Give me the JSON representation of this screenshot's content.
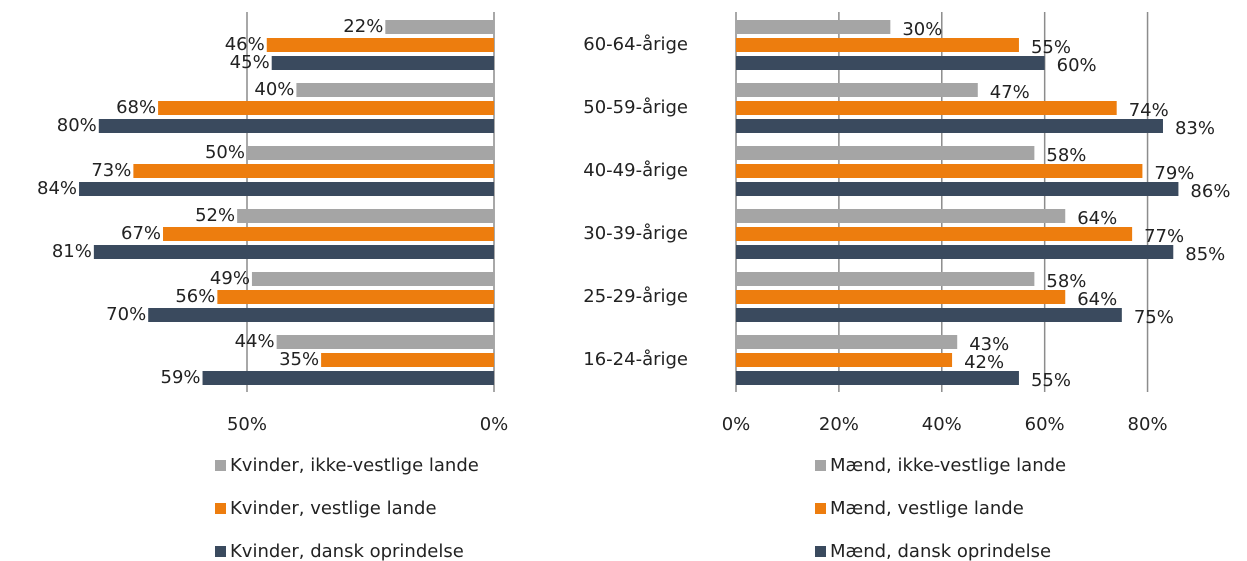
{
  "chart_data": [
    {
      "type": "bar",
      "orientation": "horizontal",
      "x_reversed": true,
      "categories": [
        null,
        null,
        null,
        null,
        null,
        null
      ],
      "xlim": [
        0,
        100
      ],
      "xticks": [
        {
          "value": 50,
          "label": "50%"
        },
        {
          "value": 0,
          "label": "0%"
        }
      ],
      "grid": true,
      "series": [
        {
          "name": "Kvinder, ikke-vestlige lande",
          "color": "#a5a5a5",
          "values": [
            22,
            40,
            50,
            52,
            49,
            44
          ],
          "value_labels": [
            "22%",
            "40%",
            "50%",
            "52%",
            "49%",
            "44%"
          ]
        },
        {
          "name": "Kvinder, vestlige lande",
          "color": "#ed7d0e",
          "values": [
            46,
            68,
            73,
            67,
            56,
            35
          ],
          "value_labels": [
            "46%",
            "68%",
            "73%",
            "67%",
            "56%",
            "35%"
          ]
        },
        {
          "name": "Kvinder, dansk oprindelse",
          "color": "#3a4a5e",
          "values": [
            45,
            80,
            84,
            81,
            70,
            59
          ],
          "value_labels": [
            "45%",
            "80%",
            "84%",
            "81%",
            "70%",
            "59%"
          ]
        }
      ]
    },
    {
      "type": "bar",
      "orientation": "horizontal",
      "x_reversed": false,
      "categories": [
        "60-64-årige",
        "50-59-årige",
        "40-49-årige",
        "30-39-årige",
        "25-29-årige",
        "16-24-årige"
      ],
      "xlim": [
        0,
        90
      ],
      "xticks": [
        {
          "value": 0,
          "label": "0%"
        },
        {
          "value": 20,
          "label": "20%"
        },
        {
          "value": 40,
          "label": "40%"
        },
        {
          "value": 60,
          "label": "60%"
        },
        {
          "value": 80,
          "label": "80%"
        }
      ],
      "grid": true,
      "series": [
        {
          "name": "Mænd, ikke-vestlige lande",
          "color": "#a5a5a5",
          "values": [
            30,
            47,
            58,
            64,
            58,
            43
          ],
          "value_labels": [
            "30%",
            "47%",
            "58%",
            "64%",
            "58%",
            "43%"
          ]
        },
        {
          "name": "Mænd, vestlige lande",
          "color": "#ed7d0e",
          "values": [
            55,
            74,
            79,
            77,
            64,
            42
          ],
          "value_labels": [
            "55%",
            "74%",
            "79%",
            "77%",
            "64%",
            "42%"
          ]
        },
        {
          "name": "Mænd, dansk oprindelse",
          "color": "#3a4a5e",
          "values": [
            60,
            83,
            86,
            85,
            75,
            55
          ],
          "value_labels": [
            "60%",
            "83%",
            "86%",
            "85%",
            "75%",
            "55%"
          ]
        }
      ]
    }
  ]
}
